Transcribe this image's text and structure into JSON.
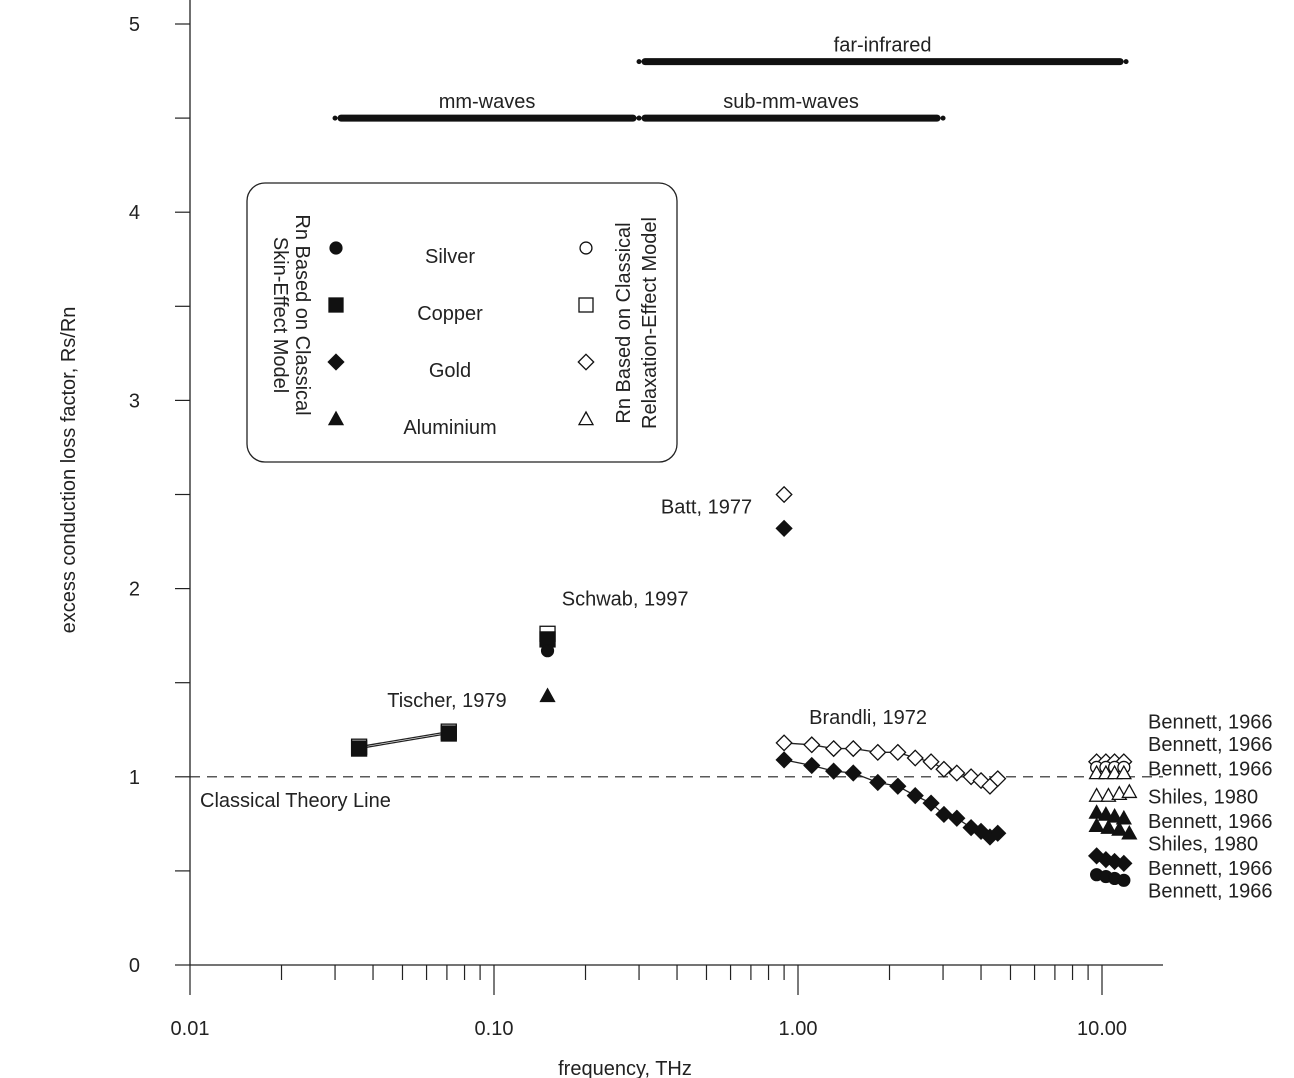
{
  "chart_data": {
    "type": "scatter",
    "xscale": "log",
    "xlim": [
      0.01,
      15
    ],
    "ylim": [
      0,
      5
    ],
    "xlabel": "frequency, THz",
    "ylabel": "excess conduction loss factor, Rs/Rn",
    "xticks": [
      0.01,
      0.1,
      1,
      10
    ],
    "xtick_labels": [
      "0.01",
      "0.10",
      "1.00",
      "10.00"
    ],
    "yticks": [
      0,
      1,
      2,
      3,
      4,
      5
    ],
    "ytick_labels": [
      "0",
      "1",
      "2",
      "3",
      "4",
      "5"
    ],
    "grid": false,
    "reference_line": {
      "y": 1,
      "label": "Classical Theory Line",
      "style": "dashed"
    },
    "bands": [
      {
        "label": "far-infrared",
        "x": [
          0.3,
          12
        ],
        "y": 4.8
      },
      {
        "label": "mm-waves",
        "x": [
          0.03,
          0.3
        ],
        "y": 4.5
      },
      {
        "label": "sub-mm-waves",
        "x": [
          0.3,
          3
        ],
        "y": 4.5
      }
    ],
    "legend": {
      "placement": "upper-left",
      "left_title": [
        "Rn Based on Classical",
        "Skin-Effect Model"
      ],
      "right_title": [
        "Rn Based on Classical",
        "Relaxation-Effect Model"
      ],
      "entries": [
        {
          "label": "Silver",
          "marker": "circle"
        },
        {
          "label": "Copper",
          "marker": "square"
        },
        {
          "label": "Gold",
          "marker": "diamond"
        },
        {
          "label": "Aluminium",
          "marker": "triangle"
        }
      ]
    },
    "series": [
      {
        "name": "Tischer, 1979 Copper (relaxation)",
        "marker": "square",
        "filled": false,
        "line": true,
        "x": [
          0.036,
          0.071
        ],
        "y": [
          1.16,
          1.24
        ]
      },
      {
        "name": "Tischer, 1979 Copper (skin)",
        "marker": "square",
        "filled": true,
        "line": true,
        "x": [
          0.036,
          0.071
        ],
        "y": [
          1.15,
          1.23
        ]
      },
      {
        "name": "Schwab, 1997 Copper (relaxation)",
        "marker": "square",
        "filled": false,
        "line": false,
        "x": [
          0.15
        ],
        "y": [
          1.76
        ]
      },
      {
        "name": "Schwab, 1997 Copper (skin)",
        "marker": "square",
        "filled": true,
        "line": false,
        "x": [
          0.15
        ],
        "y": [
          1.73
        ]
      },
      {
        "name": "Schwab, 1997 Silver (skin)",
        "marker": "circle",
        "filled": true,
        "line": false,
        "x": [
          0.15
        ],
        "y": [
          1.67
        ]
      },
      {
        "name": "Schwab, 1997 Aluminium (skin)",
        "marker": "triangle",
        "filled": true,
        "line": false,
        "x": [
          0.15
        ],
        "y": [
          1.43
        ]
      },
      {
        "name": "Batt, 1977 Gold (relaxation)",
        "marker": "diamond",
        "filled": false,
        "line": false,
        "x": [
          0.9
        ],
        "y": [
          2.5
        ]
      },
      {
        "name": "Batt, 1977 Gold (skin)",
        "marker": "diamond",
        "filled": true,
        "line": false,
        "x": [
          0.9
        ],
        "y": [
          2.32
        ]
      },
      {
        "name": "Brandli, 1972 Gold (relaxation)",
        "marker": "diamond",
        "filled": false,
        "line": true,
        "x": [
          0.9,
          1.11,
          1.31,
          1.52,
          1.83,
          2.13,
          2.43,
          2.74,
          3.02,
          3.33,
          3.71,
          4.0,
          4.28,
          4.54
        ],
        "y": [
          1.18,
          1.17,
          1.15,
          1.15,
          1.13,
          1.13,
          1.1,
          1.08,
          1.04,
          1.02,
          1.0,
          0.98,
          0.95,
          0.99
        ]
      },
      {
        "name": "Brandli, 1972 Gold (skin)",
        "marker": "diamond",
        "filled": true,
        "line": true,
        "x": [
          0.9,
          1.11,
          1.31,
          1.52,
          1.83,
          2.13,
          2.43,
          2.74,
          3.02,
          3.33,
          3.71,
          4.0,
          4.28,
          4.54
        ],
        "y": [
          1.09,
          1.06,
          1.03,
          1.02,
          0.97,
          0.95,
          0.9,
          0.86,
          0.8,
          0.78,
          0.73,
          0.71,
          0.68,
          0.7
        ]
      },
      {
        "name": "Bennett, 1966 Gold (relaxation)",
        "marker": "diamond",
        "filled": false,
        "line": false,
        "x": [
          9.6,
          10.3,
          11.0,
          11.8
        ],
        "y": [
          1.08,
          1.08,
          1.08,
          1.08
        ]
      },
      {
        "name": "Bennett, 1966 Silver (relaxation)",
        "marker": "circle",
        "filled": false,
        "line": false,
        "x": [
          9.6,
          10.3,
          11.0,
          11.8
        ],
        "y": [
          1.05,
          1.05,
          1.05,
          1.05
        ]
      },
      {
        "name": "Bennett, 1966 Aluminium (relaxation)",
        "marker": "triangle",
        "filled": false,
        "line": false,
        "x": [
          9.6,
          10.3,
          11.0,
          11.8
        ],
        "y": [
          1.02,
          1.02,
          1.02,
          1.02
        ]
      },
      {
        "name": "Shiles, 1980 Aluminium (relaxation)",
        "marker": "triangle",
        "filled": false,
        "line": false,
        "x": [
          9.6,
          10.5,
          11.4,
          12.3
        ],
        "y": [
          0.9,
          0.9,
          0.91,
          0.92
        ]
      },
      {
        "name": "Bennett, 1966 Aluminium (skin)",
        "marker": "triangle",
        "filled": true,
        "line": false,
        "x": [
          9.6,
          10.3,
          11.0,
          11.8
        ],
        "y": [
          0.81,
          0.8,
          0.79,
          0.78
        ]
      },
      {
        "name": "Shiles, 1980 Aluminium (skin)",
        "marker": "triangle",
        "filled": true,
        "line": false,
        "x": [
          9.6,
          10.5,
          11.4,
          12.3
        ],
        "y": [
          0.74,
          0.73,
          0.72,
          0.7
        ]
      },
      {
        "name": "Bennett, 1966 Gold (skin)",
        "marker": "diamond",
        "filled": true,
        "line": false,
        "x": [
          9.6,
          10.3,
          11.0,
          11.8
        ],
        "y": [
          0.58,
          0.56,
          0.55,
          0.54
        ]
      },
      {
        "name": "Bennett, 1966 Silver (skin)",
        "marker": "circle",
        "filled": true,
        "line": false,
        "x": [
          9.6,
          10.3,
          11.0,
          11.8
        ],
        "y": [
          0.48,
          0.47,
          0.46,
          0.45
        ]
      }
    ],
    "annotations": [
      {
        "text": "Tischer, 1979",
        "x": 0.07,
        "y": 1.37
      },
      {
        "text": "Schwab, 1997",
        "x": 0.27,
        "y": 1.91
      },
      {
        "text": "Batt, 1977",
        "x": 0.5,
        "y": 2.4
      },
      {
        "text": "Brandli, 1972",
        "x": 1.7,
        "y": 1.28
      },
      {
        "text": "Bennett, 1966",
        "x": 22,
        "y": 1.3
      },
      {
        "text": "Bennett, 1966",
        "x": 22,
        "y": 1.18
      },
      {
        "text": "Bennett, 1966",
        "x": 22,
        "y": 1.05
      },
      {
        "text": "Shiles, 1980",
        "x": 22,
        "y": 0.9
      },
      {
        "text": "Bennett, 1966",
        "x": 22,
        "y": 0.77
      },
      {
        "text": "Shiles, 1980",
        "x": 22,
        "y": 0.65
      },
      {
        "text": "Bennett, 1966",
        "x": 22,
        "y": 0.52
      },
      {
        "text": "Bennett, 1966",
        "x": 22,
        "y": 0.4
      }
    ]
  }
}
